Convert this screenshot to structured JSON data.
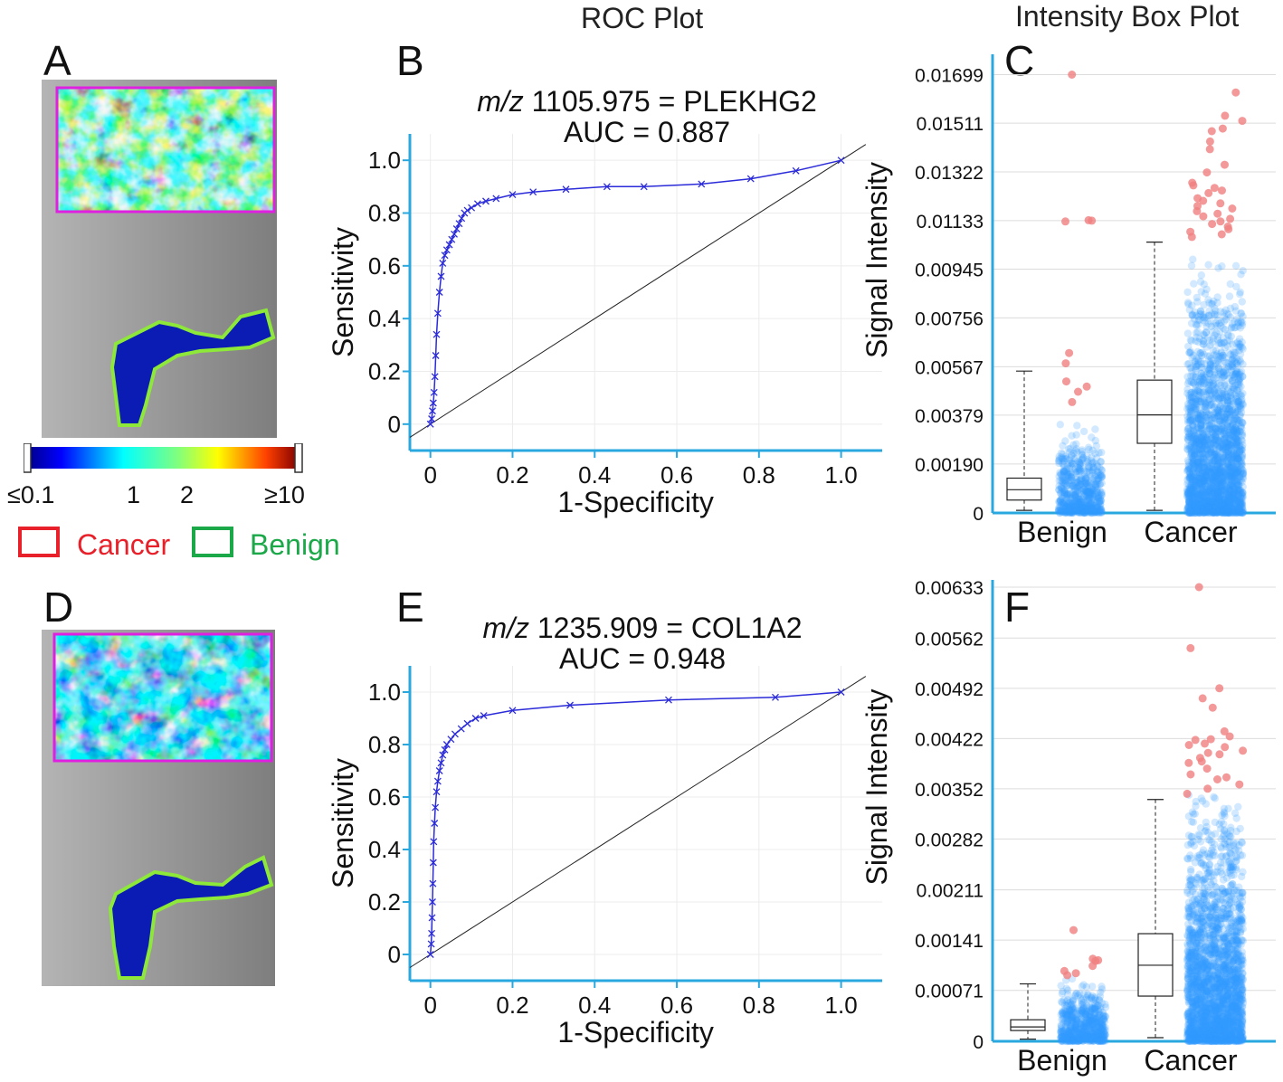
{
  "column_headers": {
    "roc": "ROC Plot",
    "box": "Intensity Box Plot"
  },
  "panel_letters": {
    "A": "A",
    "B": "B",
    "C": "C",
    "D": "D",
    "E": "E",
    "F": "F"
  },
  "colorbar": {
    "labels": [
      "≤0.1",
      "1",
      "2",
      "≥10"
    ]
  },
  "legend": {
    "cancer": {
      "label": "Cancer",
      "color": "#e8202a"
    },
    "benign": {
      "label": "Benign",
      "color": "#1aa848"
    }
  },
  "colors": {
    "axis_blue": "#29a8e0",
    "roc_curve": "#2b2bd9",
    "outlier_red": "#f08080",
    "point_blue": "#3399ff",
    "roi_magenta": "#e020e0",
    "roi_green": "#8ee83a"
  },
  "chart_data": [
    {
      "id": "B",
      "type": "line",
      "title_mz_prefix": "m/z",
      "title_mz": "1105.975 = PLEKHG2",
      "title_auc": "AUC = 0.887",
      "xlabel": "1-Specificity",
      "ylabel": "Sensitivity",
      "xlim": [
        -0.05,
        1.1
      ],
      "ylim": [
        -0.1,
        1.1
      ],
      "xticks": [
        "0",
        "0.2",
        "0.4",
        "0.6",
        "0.8",
        "1.0"
      ],
      "yticks": [
        "0",
        "0.2",
        "0.4",
        "0.6",
        "0.8",
        "1.0"
      ],
      "x": [
        0,
        0.003,
        0.005,
        0.007,
        0.009,
        0.011,
        0.013,
        0.015,
        0.018,
        0.022,
        0.026,
        0.03,
        0.035,
        0.04,
        0.046,
        0.052,
        0.058,
        0.064,
        0.07,
        0.076,
        0.083,
        0.09,
        0.1,
        0.115,
        0.135,
        0.16,
        0.2,
        0.25,
        0.33,
        0.43,
        0.52,
        0.66,
        0.78,
        0.89,
        1.0
      ],
      "y": [
        0,
        0.02,
        0.05,
        0.08,
        0.12,
        0.18,
        0.26,
        0.34,
        0.42,
        0.5,
        0.56,
        0.61,
        0.64,
        0.66,
        0.68,
        0.7,
        0.72,
        0.74,
        0.76,
        0.78,
        0.8,
        0.81,
        0.82,
        0.835,
        0.845,
        0.855,
        0.87,
        0.88,
        0.89,
        0.9,
        0.9,
        0.91,
        0.93,
        0.96,
        1.0
      ]
    },
    {
      "id": "C",
      "type": "box",
      "ylabel": "Signal  Intensity",
      "categories": [
        "Benign",
        "Cancer"
      ],
      "ylim": [
        0,
        0.0175
      ],
      "yticks": [
        0,
        0.0019,
        0.00379,
        0.00567,
        0.00756,
        0.00945,
        0.01133,
        0.01322,
        0.01511,
        0.01699
      ],
      "ytick_labels": [
        "0",
        "0.00190",
        "0.00379",
        "0.00567",
        "0.00756",
        "0.00945",
        "0.01133",
        "0.01322",
        "0.01511",
        "0.01699"
      ],
      "boxes": [
        {
          "category": "Benign",
          "whisker_low": 0.0001,
          "q1": 0.0005,
          "median": 0.0009,
          "q3": 0.00135,
          "whisker_high": 0.0055,
          "jitter_max": 0.0035,
          "jitter_count": 620
        },
        {
          "category": "Cancer",
          "whisker_low": 0.0001,
          "q1": 0.0027,
          "median": 0.0038,
          "q3": 0.00515,
          "whisker_high": 0.0105,
          "jitter_max": 0.01,
          "jitter_count": 2400
        }
      ],
      "outliers": [
        {
          "category": "Benign",
          "values": [
            0.01699,
            0.01133,
            0.01135,
            0.0113,
            0.0062,
            0.0058,
            0.0051,
            0.0049,
            0.0047,
            0.0043
          ]
        },
        {
          "category": "Cancer",
          "values": [
            0.0163,
            0.0154,
            0.0152,
            0.0149,
            0.0148,
            0.0144,
            0.0141,
            0.0135,
            0.0132,
            0.0128,
            0.0127,
            0.0124,
            0.0122,
            0.012,
            0.0118,
            0.0126,
            0.0121,
            0.0117,
            0.0115,
            0.0113,
            0.0112,
            0.0111,
            0.011,
            0.0109,
            0.0107,
            0.0119,
            0.0125,
            0.0114,
            0.0116,
            0.0108
          ]
        }
      ]
    },
    {
      "id": "E",
      "type": "line",
      "title_mz_prefix": "m/z",
      "title_mz": "1235.909 = COL1A2",
      "title_auc": "AUC = 0.948",
      "xlabel": "1-Specificity",
      "ylabel": "Sensitivity",
      "xlim": [
        -0.05,
        1.1
      ],
      "ylim": [
        -0.1,
        1.1
      ],
      "xticks": [
        "0",
        "0.2",
        "0.4",
        "0.6",
        "0.8",
        "1.0"
      ],
      "yticks": [
        "0",
        "0.2",
        "0.4",
        "0.6",
        "0.8",
        "1.0"
      ],
      "x": [
        0,
        0.002,
        0.003,
        0.004,
        0.005,
        0.006,
        0.007,
        0.008,
        0.01,
        0.012,
        0.015,
        0.018,
        0.022,
        0.026,
        0.03,
        0.035,
        0.04,
        0.05,
        0.06,
        0.075,
        0.09,
        0.11,
        0.13,
        0.2,
        0.34,
        0.58,
        0.84,
        1.0
      ],
      "y": [
        0,
        0.04,
        0.08,
        0.14,
        0.2,
        0.27,
        0.35,
        0.43,
        0.5,
        0.56,
        0.62,
        0.66,
        0.7,
        0.73,
        0.76,
        0.78,
        0.8,
        0.82,
        0.84,
        0.86,
        0.88,
        0.9,
        0.91,
        0.93,
        0.95,
        0.97,
        0.98,
        1.0
      ]
    },
    {
      "id": "F",
      "type": "box",
      "ylabel": "Signal  Intensity",
      "categories": [
        "Benign",
        "Cancer"
      ],
      "ylim": [
        0,
        0.00633
      ],
      "yticks": [
        0,
        0.00071,
        0.00141,
        0.00211,
        0.00282,
        0.00352,
        0.00422,
        0.00492,
        0.00562,
        0.00633
      ],
      "ytick_labels": [
        "0",
        "0.00071",
        "0.00141",
        "0.00211",
        "0.00282",
        "0.00352",
        "0.00422",
        "0.00492",
        "0.00562",
        "0.00633"
      ],
      "boxes": [
        {
          "category": "Benign",
          "whisker_low": 3e-05,
          "q1": 0.00015,
          "median": 0.0002,
          "q3": 0.0003,
          "whisker_high": 0.0008,
          "jitter_max": 0.0009,
          "jitter_count": 620
        },
        {
          "category": "Cancer",
          "whisker_low": 5e-05,
          "q1": 0.00063,
          "median": 0.00106,
          "q3": 0.0015,
          "whisker_high": 0.00337,
          "jitter_max": 0.0035,
          "jitter_count": 2400
        }
      ],
      "outliers": [
        {
          "category": "Benign",
          "values": [
            0.00155,
            0.00115,
            0.00113,
            0.00112,
            0.00105,
            0.00098,
            0.00095,
            0.00092
          ]
        },
        {
          "category": "Cancer",
          "values": [
            0.00633,
            0.00548,
            0.00492,
            0.00478,
            0.00465,
            0.00432,
            0.00421,
            0.0042,
            0.00413,
            0.0041,
            0.00405,
            0.004,
            0.00395,
            0.00388,
            0.0038,
            0.00372,
            0.00365,
            0.00358,
            0.00352,
            0.00345,
            0.0039,
            0.00415,
            0.00425,
            0.00402,
            0.00368
          ]
        }
      ]
    }
  ]
}
